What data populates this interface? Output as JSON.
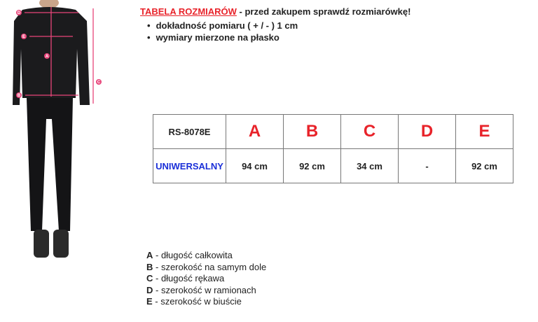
{
  "header": {
    "title": "TABELA ROZMIARÓW",
    "subtitle": " - przed zakupem sprawdź rozmiarówkę!",
    "bullets": [
      "dokładność pomiaru ( + / - ) 1 cm",
      "wymiary mierzone na płasko"
    ]
  },
  "figure": {
    "markers": [
      "D",
      "E",
      "A",
      "B",
      "C"
    ],
    "accent": "#e8457a"
  },
  "table": {
    "headers": [
      "RS-8078E",
      "A",
      "B",
      "C",
      "D",
      "E"
    ],
    "row": [
      "UNIWERSALNY",
      "94 cm",
      "92 cm",
      "34 cm",
      "-",
      "92 cm"
    ]
  },
  "legend": [
    {
      "k": "A",
      "v": " - długość całkowita"
    },
    {
      "k": "B",
      "v": " - szerokość na samym dole"
    },
    {
      "k": "C",
      "v": " - długość rękawa"
    },
    {
      "k": "D",
      "v": " - szerokość w ramionach"
    },
    {
      "k": "E",
      "v": " - szerokość w biuście"
    }
  ]
}
